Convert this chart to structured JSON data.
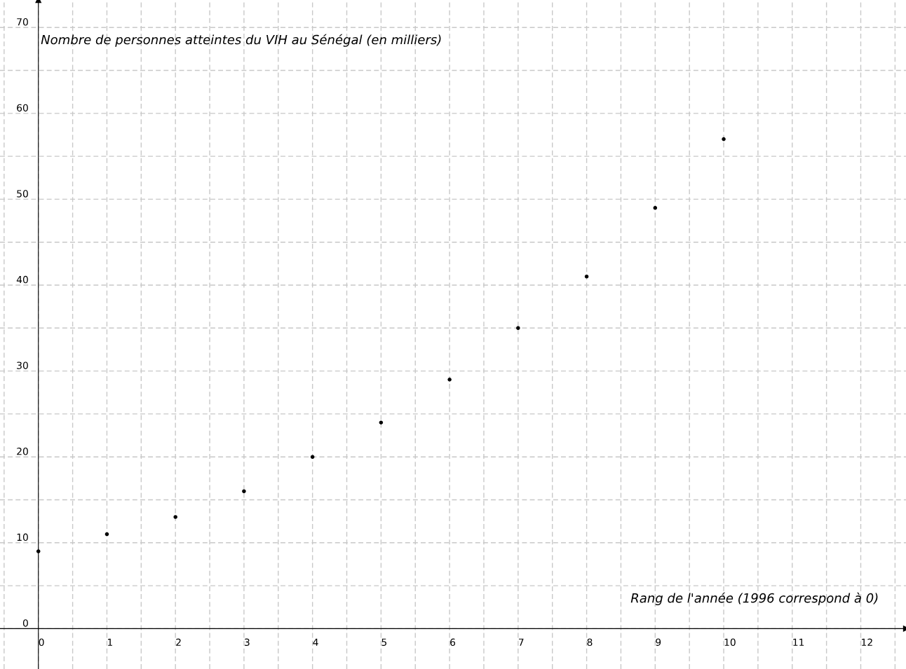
{
  "chart_data": {
    "type": "scatter",
    "xlabel": "Rang de l'année (1996 correspond à 0)",
    "ylabel": "Nombre de personnes atteintes du VIH au Sénégal (en milliers)",
    "x": [
      0,
      1,
      2,
      3,
      4,
      5,
      6,
      7,
      8,
      9,
      10
    ],
    "series": [
      {
        "color": "#000000",
        "values": [
          9,
          11,
          13,
          16,
          20,
          24,
          29,
          35,
          41,
          49,
          57
        ]
      }
    ],
    "xlim": [
      -0.56,
      12.66
    ],
    "ylim": [
      -4.7,
      73.2
    ],
    "xticks": [
      0,
      1,
      2,
      3,
      4,
      5,
      6,
      7,
      8,
      9,
      10,
      11,
      12
    ],
    "yticks": [
      0,
      10,
      20,
      30,
      40,
      50,
      60,
      70
    ],
    "grid": true,
    "marker": "circle"
  }
}
